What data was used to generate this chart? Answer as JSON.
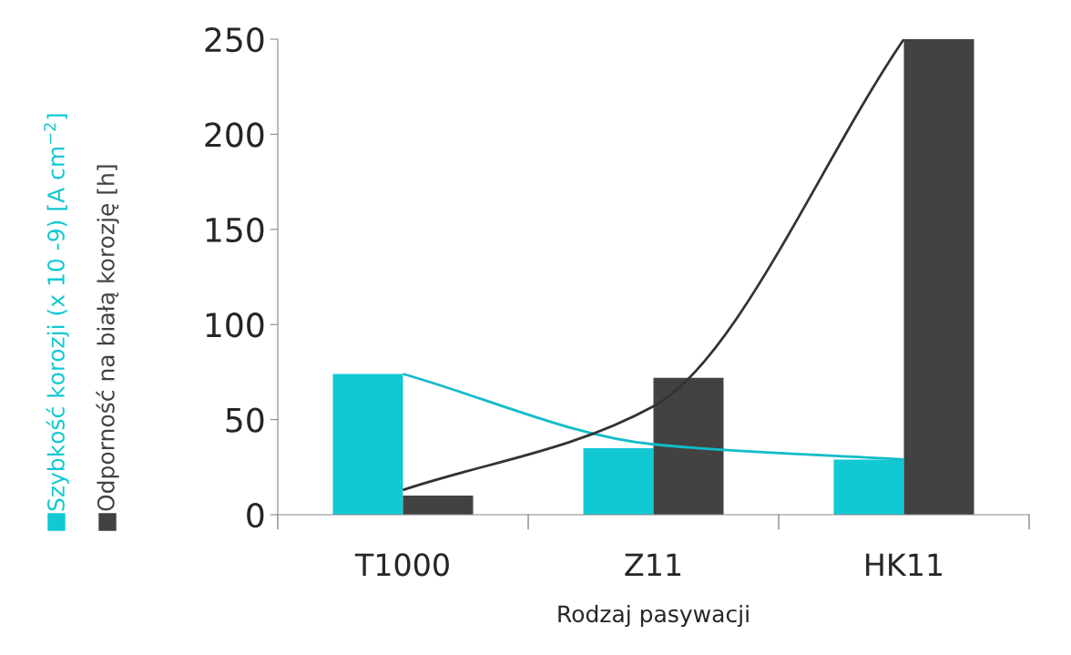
{
  "chart_data": {
    "type": "bar",
    "xlabel": "Rodzaj pasywacji",
    "categories": [
      "T1000",
      "Z11",
      "HK11"
    ],
    "series": [
      {
        "name": "Szybkość korozji (x 10 -9) [A cm$^{−2}$]",
        "color": "#12c8d2",
        "values": [
          74,
          35,
          29
        ]
      },
      {
        "name": "Odporność na białą korozję [h]",
        "color": "#424242",
        "values": [
          10,
          72,
          250
        ]
      },
      {
        "type": "line",
        "color": "#12bcc8",
        "values": [
          74,
          37,
          29
        ]
      },
      {
        "type": "line",
        "color": "#333333",
        "values": [
          13,
          57,
          250
        ]
      }
    ],
    "ylim": [
      0,
      250
    ],
    "yticks": [
      0,
      50,
      100,
      150,
      200,
      250
    ],
    "grid": false,
    "legend": "left"
  }
}
